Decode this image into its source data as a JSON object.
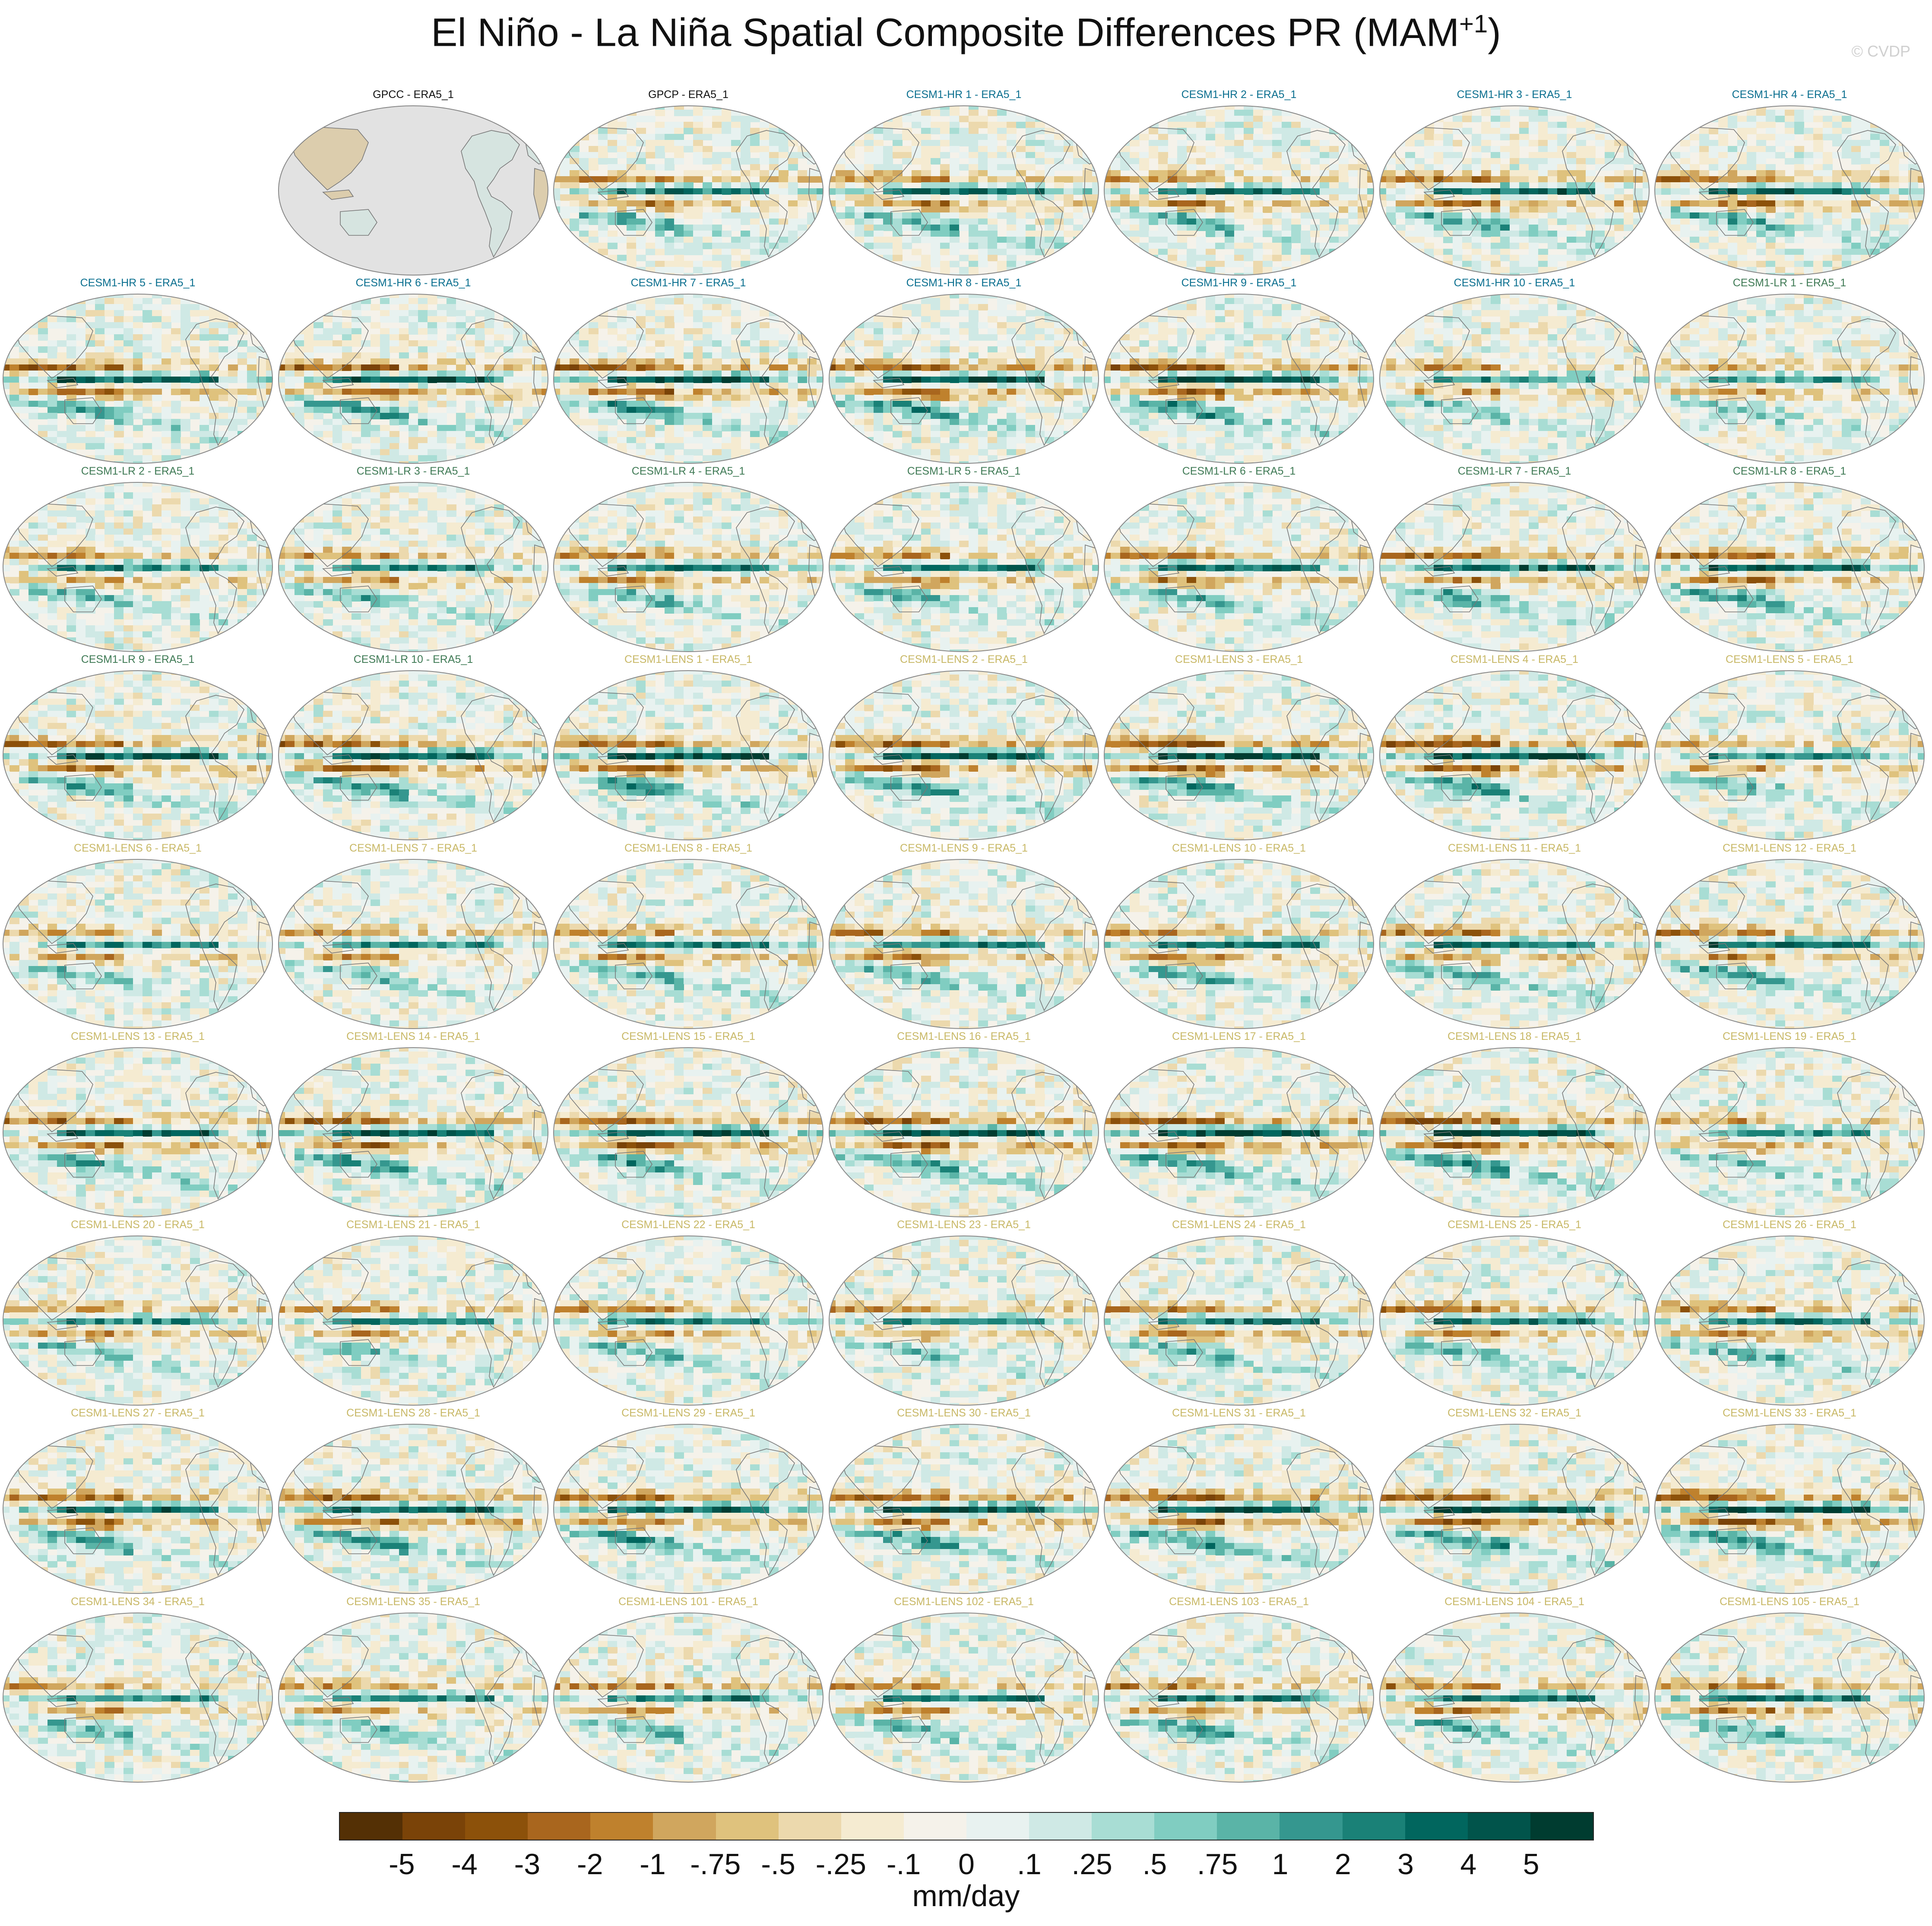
{
  "title": {
    "main": "El Niño - La Niña Spatial Composite Differences PR (MAM",
    "superscript": "+1",
    "close": ")"
  },
  "watermark": "© CVDP",
  "group_colors": {
    "obs": "#111111",
    "CESM1-HR": "#0a6f8f",
    "CESM1-LR": "#3f7a55",
    "CESM1-LENS": "#c8b866"
  },
  "chart_data": {
    "type": "heatmap",
    "projection": "global map, Pacific-centred",
    "panels": [
      {
        "label": "GPCC - ERA5_1",
        "group": "obs",
        "data_coverage": "land only"
      },
      {
        "label": "GPCP - ERA5_1",
        "group": "obs"
      },
      {
        "label": "CESM1-HR 1 - ERA5_1",
        "group": "CESM1-HR"
      },
      {
        "label": "CESM1-HR 2 - ERA5_1",
        "group": "CESM1-HR"
      },
      {
        "label": "CESM1-HR 3 - ERA5_1",
        "group": "CESM1-HR"
      },
      {
        "label": "CESM1-HR 4 - ERA5_1",
        "group": "CESM1-HR"
      },
      {
        "label": "CESM1-HR 5 - ERA5_1",
        "group": "CESM1-HR"
      },
      {
        "label": "CESM1-HR 6 - ERA5_1",
        "group": "CESM1-HR"
      },
      {
        "label": "CESM1-HR 7 - ERA5_1",
        "group": "CESM1-HR"
      },
      {
        "label": "CESM1-HR 8 - ERA5_1",
        "group": "CESM1-HR"
      },
      {
        "label": "CESM1-HR 9 - ERA5_1",
        "group": "CESM1-HR"
      },
      {
        "label": "CESM1-HR 10 - ERA5_1",
        "group": "CESM1-HR"
      },
      {
        "label": "CESM1-LR 1 - ERA5_1",
        "group": "CESM1-LR"
      },
      {
        "label": "CESM1-LR 2 - ERA5_1",
        "group": "CESM1-LR"
      },
      {
        "label": "CESM1-LR 3 - ERA5_1",
        "group": "CESM1-LR"
      },
      {
        "label": "CESM1-LR 4 - ERA5_1",
        "group": "CESM1-LR"
      },
      {
        "label": "CESM1-LR 5 - ERA5_1",
        "group": "CESM1-LR"
      },
      {
        "label": "CESM1-LR 6 - ERA5_1",
        "group": "CESM1-LR"
      },
      {
        "label": "CESM1-LR 7 - ERA5_1",
        "group": "CESM1-LR"
      },
      {
        "label": "CESM1-LR 8 - ERA5_1",
        "group": "CESM1-LR"
      },
      {
        "label": "CESM1-LR 9 - ERA5_1",
        "group": "CESM1-LR"
      },
      {
        "label": "CESM1-LR 10 - ERA5_1",
        "group": "CESM1-LR"
      },
      {
        "label": "CESM1-LENS 1 - ERA5_1",
        "group": "CESM1-LENS"
      },
      {
        "label": "CESM1-LENS 2 - ERA5_1",
        "group": "CESM1-LENS"
      },
      {
        "label": "CESM1-LENS 3 - ERA5_1",
        "group": "CESM1-LENS"
      },
      {
        "label": "CESM1-LENS 4 - ERA5_1",
        "group": "CESM1-LENS"
      },
      {
        "label": "CESM1-LENS 5 - ERA5_1",
        "group": "CESM1-LENS"
      },
      {
        "label": "CESM1-LENS 6 - ERA5_1",
        "group": "CESM1-LENS"
      },
      {
        "label": "CESM1-LENS 7 - ERA5_1",
        "group": "CESM1-LENS"
      },
      {
        "label": "CESM1-LENS 8 - ERA5_1",
        "group": "CESM1-LENS"
      },
      {
        "label": "CESM1-LENS 9 - ERA5_1",
        "group": "CESM1-LENS"
      },
      {
        "label": "CESM1-LENS 10 - ERA5_1",
        "group": "CESM1-LENS"
      },
      {
        "label": "CESM1-LENS 11 - ERA5_1",
        "group": "CESM1-LENS"
      },
      {
        "label": "CESM1-LENS 12 - ERA5_1",
        "group": "CESM1-LENS"
      },
      {
        "label": "CESM1-LENS 13 - ERA5_1",
        "group": "CESM1-LENS"
      },
      {
        "label": "CESM1-LENS 14 - ERA5_1",
        "group": "CESM1-LENS"
      },
      {
        "label": "CESM1-LENS 15 - ERA5_1",
        "group": "CESM1-LENS"
      },
      {
        "label": "CESM1-LENS 16 - ERA5_1",
        "group": "CESM1-LENS"
      },
      {
        "label": "CESM1-LENS 17 - ERA5_1",
        "group": "CESM1-LENS"
      },
      {
        "label": "CESM1-LENS 18 - ERA5_1",
        "group": "CESM1-LENS"
      },
      {
        "label": "CESM1-LENS 19 - ERA5_1",
        "group": "CESM1-LENS"
      },
      {
        "label": "CESM1-LENS 20 - ERA5_1",
        "group": "CESM1-LENS"
      },
      {
        "label": "CESM1-LENS 21 - ERA5_1",
        "group": "CESM1-LENS"
      },
      {
        "label": "CESM1-LENS 22 - ERA5_1",
        "group": "CESM1-LENS"
      },
      {
        "label": "CESM1-LENS 23 - ERA5_1",
        "group": "CESM1-LENS"
      },
      {
        "label": "CESM1-LENS 24 - ERA5_1",
        "group": "CESM1-LENS"
      },
      {
        "label": "CESM1-LENS 25 - ERA5_1",
        "group": "CESM1-LENS"
      },
      {
        "label": "CESM1-LENS 26 - ERA5_1",
        "group": "CESM1-LENS"
      },
      {
        "label": "CESM1-LENS 27 - ERA5_1",
        "group": "CESM1-LENS"
      },
      {
        "label": "CESM1-LENS 28 - ERA5_1",
        "group": "CESM1-LENS"
      },
      {
        "label": "CESM1-LENS 29 - ERA5_1",
        "group": "CESM1-LENS"
      },
      {
        "label": "CESM1-LENS 30 - ERA5_1",
        "group": "CESM1-LENS"
      },
      {
        "label": "CESM1-LENS 31 - ERA5_1",
        "group": "CESM1-LENS"
      },
      {
        "label": "CESM1-LENS 32 - ERA5_1",
        "group": "CESM1-LENS"
      },
      {
        "label": "CESM1-LENS 33 - ERA5_1",
        "group": "CESM1-LENS"
      },
      {
        "label": "CESM1-LENS 34 - ERA5_1",
        "group": "CESM1-LENS"
      },
      {
        "label": "CESM1-LENS 35 - ERA5_1",
        "group": "CESM1-LENS"
      },
      {
        "label": "CESM1-LENS 101 - ERA5_1",
        "group": "CESM1-LENS"
      },
      {
        "label": "CESM1-LENS 102 - ERA5_1",
        "group": "CESM1-LENS"
      },
      {
        "label": "CESM1-LENS 103 - ERA5_1",
        "group": "CESM1-LENS"
      },
      {
        "label": "CESM1-LENS 104 - ERA5_1",
        "group": "CESM1-LENS"
      },
      {
        "label": "CESM1-LENS 105 - ERA5_1",
        "group": "CESM1-LENS"
      }
    ],
    "colorbar": {
      "units": "mm/day",
      "tick_labels": [
        "-5",
        "-4",
        "-3",
        "-2",
        "-1",
        "-.75",
        "-.5",
        "-.25",
        "-.1",
        "0",
        ".1",
        ".25",
        ".5",
        ".75",
        "1",
        "2",
        "3",
        "4",
        "5"
      ],
      "colors": [
        "#543005",
        "#7a4308",
        "#8c510a",
        "#a9661e",
        "#bf812d",
        "#d0a65e",
        "#dfc27d",
        "#ecd9ad",
        "#f5ebd1",
        "#f5f2ea",
        "#e8f2f0",
        "#cfe9e5",
        "#a8ddd4",
        "#80cdc1",
        "#5ab4a7",
        "#35978f",
        "#1a8177",
        "#01665e",
        "#01544b",
        "#003c30"
      ]
    }
  }
}
